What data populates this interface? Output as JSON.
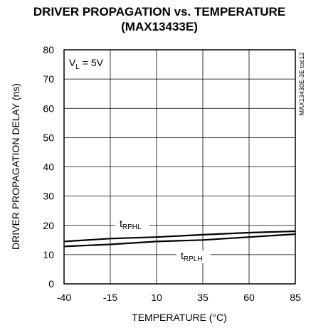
{
  "chart_data": {
    "type": "line",
    "title_line1": "DRIVER PROPAGATION vs. TEMPERATURE",
    "title_line2": "(MAX13433E)",
    "xlabel": "TEMPERATURE (°C)",
    "ylabel": "DRIVER PROPAGATION DELAY (ns)",
    "xlim": [
      -40,
      85
    ],
    "ylim": [
      0,
      80
    ],
    "xticks": [
      -40,
      -15,
      10,
      35,
      60,
      85
    ],
    "yticks": [
      0,
      10,
      20,
      30,
      40,
      50,
      60,
      70,
      80
    ],
    "grid": true,
    "condition_main": "V",
    "condition_sub": "L",
    "condition_rest": " = 5V",
    "side_note": "MAX13430E-3E toc12",
    "series": [
      {
        "label_main": "t",
        "label_sub": "RPHL",
        "x": [
          -40,
          -15,
          10,
          35,
          60,
          85
        ],
        "y": [
          14.5,
          15.5,
          16.0,
          16.8,
          17.5,
          18.0
        ]
      },
      {
        "label_main": "t",
        "label_sub": "RPLH",
        "x": [
          -40,
          -15,
          10,
          35,
          60,
          85
        ],
        "y": [
          12.8,
          13.5,
          14.5,
          15.0,
          16.0,
          17.0
        ]
      }
    ]
  }
}
